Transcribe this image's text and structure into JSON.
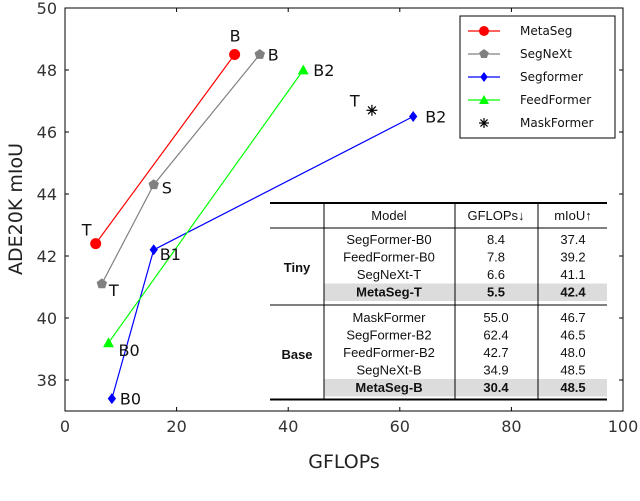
{
  "chart_data": {
    "type": "line",
    "xlabel": "GFLOPs",
    "ylabel": "ADE20K mIoU",
    "xlim": [
      0,
      100
    ],
    "ylim": [
      37,
      50
    ],
    "xticks": [
      0,
      20,
      40,
      60,
      80,
      100
    ],
    "yticks": [
      38,
      40,
      42,
      44,
      46,
      48,
      50
    ],
    "grid": false,
    "legend_position": "top-right",
    "series": [
      {
        "name": "MetaSeg",
        "color": "#ff0000",
        "marker": "circle",
        "points": [
          {
            "x": 5.5,
            "y": 42.4,
            "label": "T"
          },
          {
            "x": 30.4,
            "y": 48.5,
            "label": "B"
          }
        ]
      },
      {
        "name": "SegNeXt",
        "color": "#808080",
        "marker": "pentagon",
        "points": [
          {
            "x": 6.6,
            "y": 41.1,
            "label": "T"
          },
          {
            "x": 15.9,
            "y": 44.3,
            "label": "S"
          },
          {
            "x": 34.9,
            "y": 48.5,
            "label": "B"
          }
        ]
      },
      {
        "name": "Segformer",
        "color": "#0000ff",
        "marker": "diamond",
        "points": [
          {
            "x": 8.4,
            "y": 37.4,
            "label": "B0"
          },
          {
            "x": 15.9,
            "y": 42.2,
            "label": "B1"
          },
          {
            "x": 62.4,
            "y": 46.5,
            "label": "B2"
          }
        ]
      },
      {
        "name": "FeedFormer",
        "color": "#00ff00",
        "marker": "triangle",
        "points": [
          {
            "x": 7.8,
            "y": 39.2,
            "label": "B0"
          },
          {
            "x": 42.7,
            "y": 48.0,
            "label": "B2"
          }
        ]
      },
      {
        "name": "MaskFormer",
        "color": "#000000",
        "marker": "asterisk",
        "points": [
          {
            "x": 55.0,
            "y": 46.7,
            "label": "T"
          }
        ]
      }
    ]
  },
  "table": {
    "headers": [
      "Model",
      "GFLOPs↓",
      "mIoU↑"
    ],
    "groups": [
      {
        "name": "Tiny",
        "rows": [
          {
            "model": "SegFormer-B0",
            "gflops": "8.4",
            "miou": "37.4",
            "highlight": false
          },
          {
            "model": "FeedFormer-B0",
            "gflops": "7.8",
            "miou": "39.2",
            "highlight": false
          },
          {
            "model": "SegNeXt-T",
            "gflops": "6.6",
            "miou": "41.1",
            "highlight": false
          },
          {
            "model": "MetaSeg-T",
            "gflops": "5.5",
            "miou": "42.4",
            "highlight": true
          }
        ]
      },
      {
        "name": "Base",
        "rows": [
          {
            "model": "MaskFormer",
            "gflops": "55.0",
            "miou": "46.7",
            "highlight": false
          },
          {
            "model": "SegFormer-B2",
            "gflops": "62.4",
            "miou": "46.5",
            "highlight": false
          },
          {
            "model": "FeedFormer-B2",
            "gflops": "42.7",
            "miou": "48.0",
            "highlight": false
          },
          {
            "model": "SegNeXt-B",
            "gflops": "34.9",
            "miou": "48.5",
            "highlight": false
          },
          {
            "model": "MetaSeg-B",
            "gflops": "30.4",
            "miou": "48.5",
            "highlight": true
          }
        ]
      }
    ]
  }
}
